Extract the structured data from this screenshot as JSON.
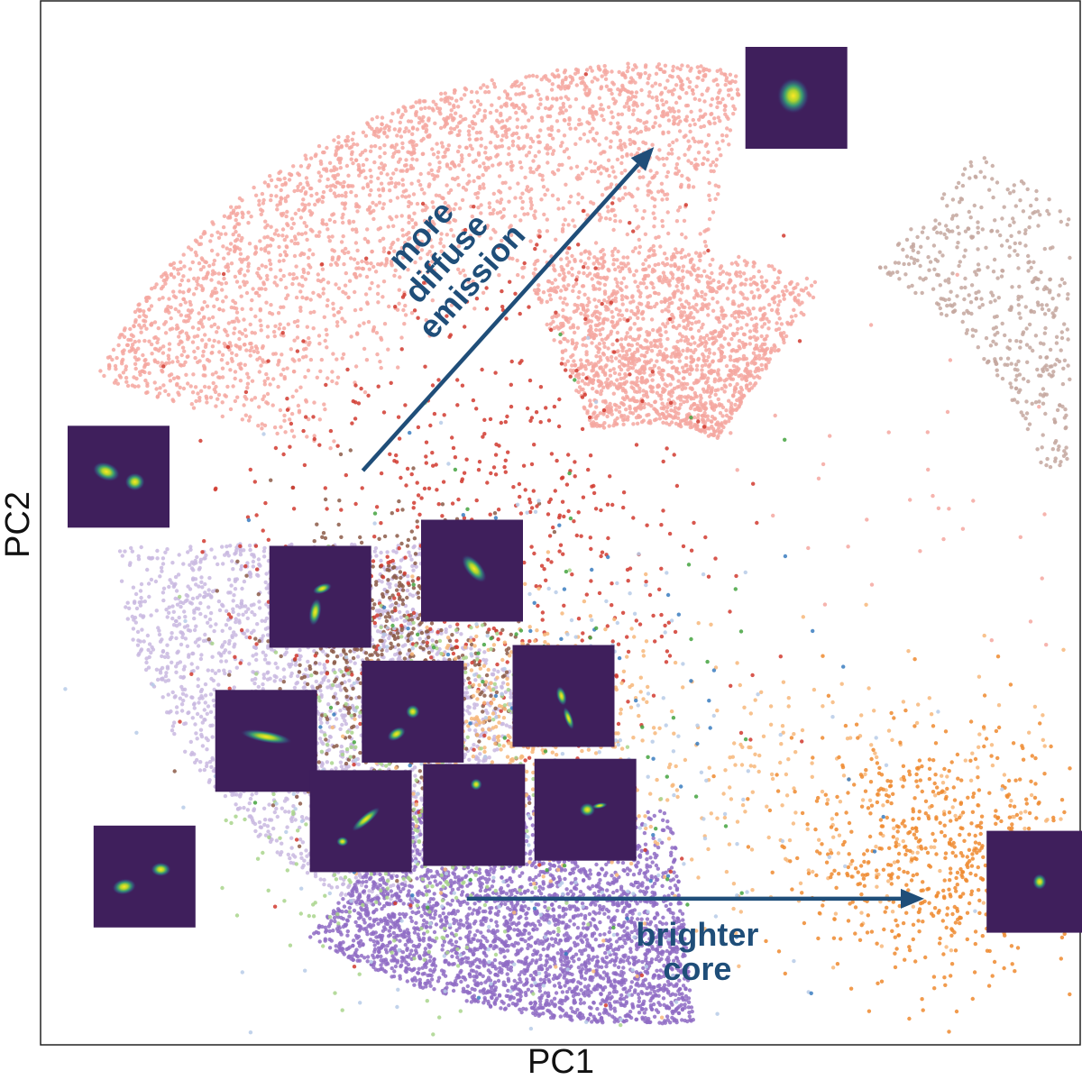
{
  "chart_data": {
    "type": "scatter",
    "xlabel": "PC1",
    "ylabel": "PC2",
    "xlim": [
      0,
      100
    ],
    "ylim": [
      0,
      100
    ],
    "ticks_visible": false,
    "grid": false,
    "legend": "none",
    "annotations": [
      {
        "id": "diffuse",
        "lines": [
          "more",
          "diffuse",
          "emission"
        ],
        "color": "#1f4e79",
        "arrow": {
          "from": [
            31,
            55
          ],
          "to": [
            59,
            86
          ]
        }
      },
      {
        "id": "core",
        "lines": [
          "brighter",
          "core"
        ],
        "color": "#1f4e79",
        "arrow": {
          "from": [
            41,
            14
          ],
          "to": [
            85,
            14
          ]
        }
      }
    ],
    "series": [
      {
        "color": "#f4a7a0",
        "count": 2600,
        "seed": 11,
        "shape": "arc",
        "r_range": [
          0.55,
          1.0
        ],
        "angle_range": [
          80,
          160
        ],
        "density_power": 2.2
      },
      {
        "color": "#f4a7a0",
        "count": 1800,
        "seed": 12,
        "shape": "arc",
        "r_range": [
          0.25,
          0.62
        ],
        "angle_range": [
          60,
          110
        ],
        "density_power": 1.0
      },
      {
        "color": "#c9b9e0",
        "count": 2400,
        "seed": 13,
        "shape": "arc",
        "r_range": [
          0.35,
          0.9
        ],
        "angle_range": [
          180,
          240
        ],
        "density_power": 1.4
      },
      {
        "color": "#8f6cc4",
        "count": 3200,
        "seed": 14,
        "shape": "arc",
        "r_range": [
          0.55,
          1.0
        ],
        "angle_range": [
          235,
          275
        ],
        "density_power": 1.6
      },
      {
        "color": "#c4a79f",
        "count": 700,
        "seed": 15,
        "shape": "arc",
        "r_range": [
          0.7,
          1.0
        ],
        "angle_range": [
          12,
          55
        ],
        "density_power": 0.9
      },
      {
        "color": "#8c5a48",
        "count": 700,
        "seed": 16,
        "shape": "blob",
        "center": [
          34,
          37
        ],
        "spread": [
          6,
          7
        ]
      },
      {
        "color": "#d13a2f",
        "count": 650,
        "seed": 17,
        "shape": "blob",
        "center": [
          41,
          48
        ],
        "spread": [
          12,
          14
        ]
      },
      {
        "color": "#f7b77a",
        "count": 500,
        "seed": 18,
        "shape": "blob",
        "center": [
          46,
          30
        ],
        "spread": [
          7,
          6
        ]
      },
      {
        "color": "#f7b77a",
        "count": 300,
        "seed": 19,
        "shape": "blob",
        "center": [
          73,
          24
        ],
        "spread": [
          16,
          7
        ]
      },
      {
        "color": "#ef8a2f",
        "count": 650,
        "seed": 20,
        "shape": "blob",
        "center": [
          87,
          18
        ],
        "spread": [
          7,
          6
        ]
      },
      {
        "color": "#a9d58c",
        "count": 450,
        "seed": 21,
        "shape": "blob",
        "center": [
          36,
          24
        ],
        "spread": [
          8,
          9
        ]
      },
      {
        "color": "#b7cbe7",
        "count": 300,
        "seed": 22,
        "shape": "blob",
        "center": [
          46,
          25
        ],
        "spread": [
          14,
          13
        ]
      },
      {
        "color": "#3a7dbf",
        "count": 70,
        "seed": 23,
        "shape": "blob",
        "center": [
          48,
          30
        ],
        "spread": [
          15,
          14
        ]
      },
      {
        "color": "#44a340",
        "count": 90,
        "seed": 24,
        "shape": "blob",
        "center": [
          45,
          30
        ],
        "spread": [
          12,
          12
        ]
      },
      {
        "color": "#f4a7a0",
        "count": 40,
        "seed": 25,
        "shape": "blob",
        "center": [
          80,
          53
        ],
        "spread": [
          12,
          10
        ]
      }
    ],
    "thumbnails": [
      {
        "id": "thumb-top-right",
        "pos": [
          67.8,
          95.6
        ],
        "size": 9.8,
        "blobs": [
          {
            "dx": 0.47,
            "dy": 0.48,
            "rx": 0.16,
            "ry": 0.18,
            "rot": 0
          }
        ]
      },
      {
        "id": "thumb-left-upper",
        "pos": [
          2.6,
          59.3
        ],
        "size": 9.8,
        "blobs": [
          {
            "dx": 0.38,
            "dy": 0.45,
            "rx": 0.14,
            "ry": 0.09,
            "rot": 20
          },
          {
            "dx": 0.66,
            "dy": 0.55,
            "rx": 0.1,
            "ry": 0.09,
            "rot": 0
          }
        ]
      },
      {
        "id": "thumb-mid-1",
        "pos": [
          22.0,
          47.8
        ],
        "size": 9.8,
        "blobs": [
          {
            "dx": 0.52,
            "dy": 0.42,
            "rx": 0.1,
            "ry": 0.05,
            "rot": -20
          },
          {
            "dx": 0.45,
            "dy": 0.65,
            "rx": 0.06,
            "ry": 0.14,
            "rot": 10
          }
        ]
      },
      {
        "id": "thumb-mid-2",
        "pos": [
          36.6,
          50.3
        ],
        "size": 9.8,
        "blobs": [
          {
            "dx": 0.52,
            "dy": 0.48,
            "rx": 0.17,
            "ry": 0.08,
            "rot": 50
          }
        ]
      },
      {
        "id": "thumb-mid-3",
        "pos": [
          45.4,
          38.3
        ],
        "size": 9.8,
        "blobs": [
          {
            "dx": 0.48,
            "dy": 0.5,
            "rx": 0.05,
            "ry": 0.1,
            "rot": -15
          },
          {
            "dx": 0.55,
            "dy": 0.72,
            "rx": 0.04,
            "ry": 0.12,
            "rot": -20
          }
        ]
      },
      {
        "id": "thumb-mid-4",
        "pos": [
          30.9,
          36.8
        ],
        "size": 9.8,
        "blobs": [
          {
            "dx": 0.5,
            "dy": 0.5,
            "rx": 0.07,
            "ry": 0.07,
            "rot": 0
          },
          {
            "dx": 0.34,
            "dy": 0.72,
            "rx": 0.1,
            "ry": 0.06,
            "rot": -30
          }
        ]
      },
      {
        "id": "thumb-mid-5",
        "pos": [
          16.8,
          34.0
        ],
        "size": 9.8,
        "blobs": [
          {
            "dx": 0.5,
            "dy": 0.46,
            "rx": 0.26,
            "ry": 0.06,
            "rot": 10
          }
        ]
      },
      {
        "id": "thumb-low-1",
        "pos": [
          25.9,
          26.3
        ],
        "size": 9.8,
        "blobs": [
          {
            "dx": 0.55,
            "dy": 0.48,
            "rx": 0.18,
            "ry": 0.05,
            "rot": -40
          },
          {
            "dx": 0.32,
            "dy": 0.7,
            "rx": 0.06,
            "ry": 0.05,
            "rot": 0
          }
        ]
      },
      {
        "id": "thumb-low-2",
        "pos": [
          36.8,
          26.9
        ],
        "size": 9.8,
        "blobs": [
          {
            "dx": 0.52,
            "dy": 0.2,
            "rx": 0.06,
            "ry": 0.06,
            "rot": 0
          }
        ]
      },
      {
        "id": "thumb-low-3",
        "pos": [
          47.5,
          27.4
        ],
        "size": 9.8,
        "blobs": [
          {
            "dx": 0.52,
            "dy": 0.5,
            "rx": 0.08,
            "ry": 0.07,
            "rot": 0
          },
          {
            "dx": 0.64,
            "dy": 0.46,
            "rx": 0.08,
            "ry": 0.03,
            "rot": -10
          }
        ]
      },
      {
        "id": "thumb-bottom-left",
        "pos": [
          5.1,
          21.0
        ],
        "size": 9.8,
        "blobs": [
          {
            "dx": 0.3,
            "dy": 0.6,
            "rx": 0.12,
            "ry": 0.08,
            "rot": -10
          },
          {
            "dx": 0.66,
            "dy": 0.43,
            "rx": 0.1,
            "ry": 0.07,
            "rot": 0
          }
        ]
      },
      {
        "id": "thumb-bottom-right",
        "pos": [
          91.0,
          20.5
        ],
        "size": 9.8,
        "blobs": [
          {
            "dx": 0.52,
            "dy": 0.5,
            "rx": 0.07,
            "ry": 0.08,
            "rot": 0
          }
        ]
      }
    ]
  }
}
